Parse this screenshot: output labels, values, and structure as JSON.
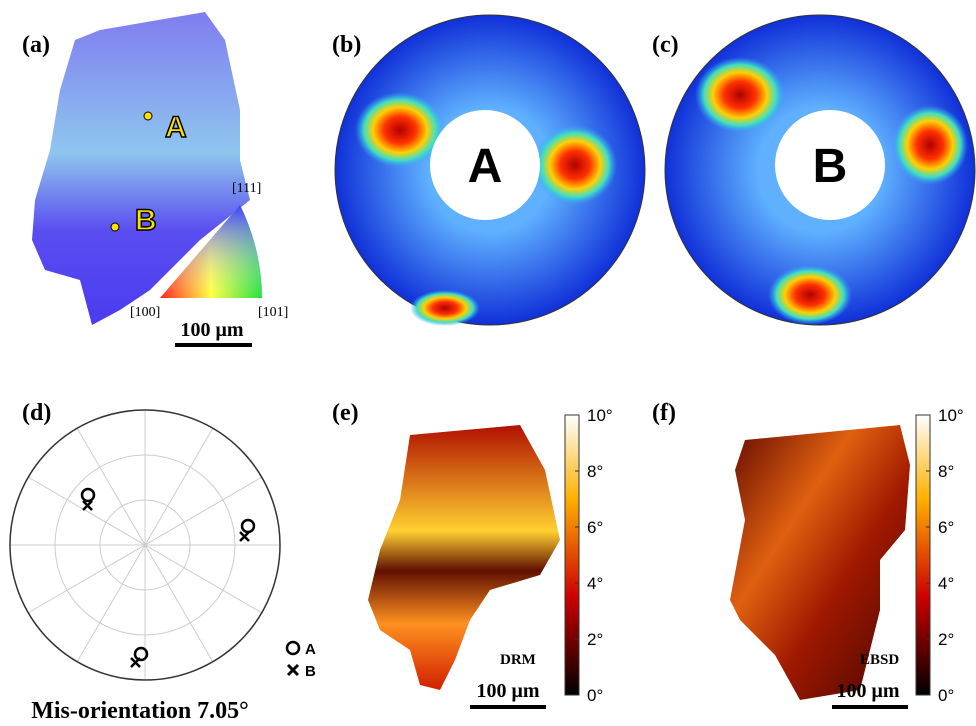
{
  "panels": [
    {
      "label": "(a)",
      "points": [
        "A",
        "B"
      ],
      "triangle": {
        "top": "[111]",
        "left": "[100]",
        "right": "[101]"
      },
      "scale_bar": "100 μm"
    },
    {
      "label": "(b)",
      "center": "A"
    },
    {
      "label": "(c)",
      "center": "B"
    },
    {
      "label": "(d)",
      "legend": [
        "A",
        "B"
      ],
      "caption": "Mis-orientation 7.05°"
    },
    {
      "label": "(e)",
      "tag": "DRM",
      "scale_bar": "100 μm",
      "colorbar": {
        "range": [
          0,
          10
        ],
        "ticks": [
          {
            "value": 0,
            "label": "0°"
          },
          {
            "value": 2,
            "label": "2°"
          },
          {
            "value": 4,
            "label": "4°"
          },
          {
            "value": 6,
            "label": "6°"
          },
          {
            "value": 8,
            "label": "8°"
          },
          {
            "value": 10,
            "label": "10°"
          }
        ]
      }
    },
    {
      "label": "(f)",
      "tag": "EBSD",
      "scale_bar": "100 μm",
      "colorbar": {
        "range": [
          0,
          10
        ],
        "ticks": [
          {
            "value": 0,
            "label": "0°"
          },
          {
            "value": 2,
            "label": "2°"
          },
          {
            "value": 4,
            "label": "4°"
          },
          {
            "value": 6,
            "label": "6°"
          },
          {
            "value": 8,
            "label": "8°"
          },
          {
            "value": 10,
            "label": "10°"
          }
        ]
      }
    }
  ]
}
